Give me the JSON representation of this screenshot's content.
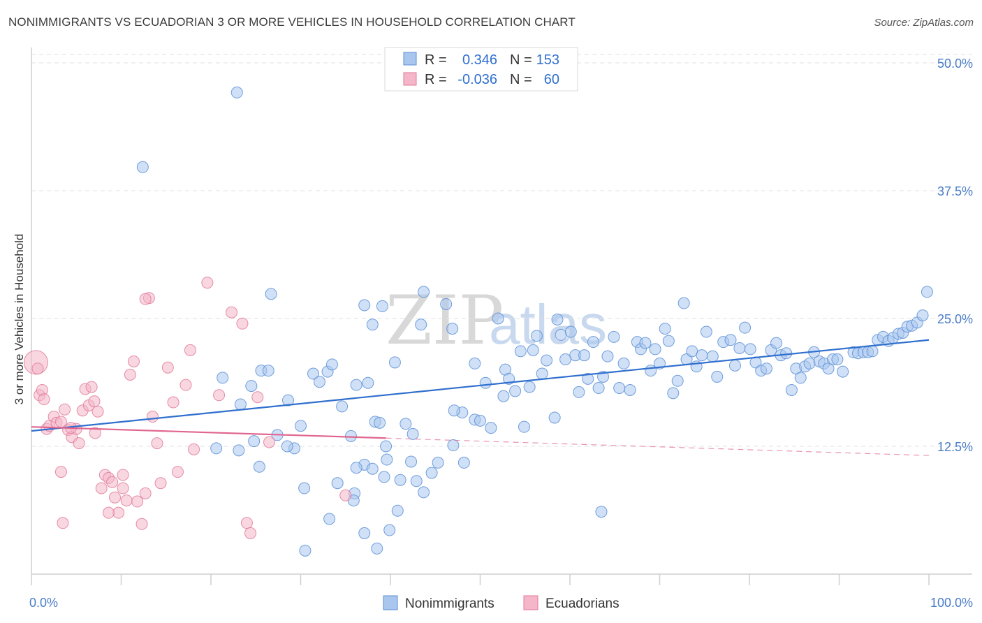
{
  "title": "NONIMMIGRANTS VS ECUADORIAN 3 OR MORE VEHICLES IN HOUSEHOLD CORRELATION CHART",
  "source": "Source: ZipAtlas.com",
  "watermark": {
    "zip": "ZIP",
    "atlas": "atlas"
  },
  "colors": {
    "blue_fill": "#a9c6ee",
    "blue_stroke": "#5b8fd6",
    "blue_line": "#2f6fce",
    "pink_fill": "#f4b6c8",
    "pink_stroke": "#e07a9a",
    "pink_line": "#e0668f",
    "tick_text": "#4a7cc9",
    "grid": "#e2e2e2"
  },
  "legend": {
    "rows": [
      {
        "r_label": "R =",
        "r_value": "0.346",
        "n_label": "N =",
        "n_value": "153"
      },
      {
        "r_label": "R =",
        "r_value": "-0.036",
        "n_label": "N =",
        "n_value": "60"
      }
    ]
  },
  "chart_data": {
    "type": "scatter",
    "title": "NONIMMIGRANTS VS ECUADORIAN 3 OR MORE VEHICLES IN HOUSEHOLD CORRELATION CHART",
    "xlabel": "",
    "ylabel": "3 or more Vehicles in Household",
    "xlim": [
      0,
      100
    ],
    "ylim": [
      0,
      51.5
    ],
    "x_tick_labels": [
      {
        "value": 0,
        "label": "0.0%"
      },
      {
        "value": 100,
        "label": "100.0%"
      }
    ],
    "y_tick_labels": [
      {
        "value": 12.5,
        "label": "12.5%"
      },
      {
        "value": 25.0,
        "label": "25.0%"
      },
      {
        "value": 37.5,
        "label": "37.5%"
      },
      {
        "value": 50.0,
        "label": "50.0%"
      }
    ],
    "grid": true,
    "legend_position": "top-center",
    "series": [
      {
        "name": "Nonimmigrants",
        "color": "#a9c6ee",
        "trend": {
          "x": [
            0,
            100
          ],
          "y": [
            14.0,
            22.9
          ]
        },
        "points": [
          [
            22.9,
            47.1
          ],
          [
            12.4,
            39.8
          ],
          [
            26.7,
            27.4
          ],
          [
            43.7,
            27.6
          ],
          [
            37.1,
            26.3
          ],
          [
            39.1,
            26.2
          ],
          [
            46.2,
            26.4
          ],
          [
            72.7,
            26.5
          ],
          [
            21.3,
            19.2
          ],
          [
            25.6,
            19.9
          ],
          [
            24.5,
            18.4
          ],
          [
            28.6,
            17.0
          ],
          [
            30.0,
            14.5
          ],
          [
            34.6,
            16.4
          ],
          [
            36.2,
            18.5
          ],
          [
            37.5,
            18.7
          ],
          [
            38.0,
            24.4
          ],
          [
            40.5,
            20.7
          ],
          [
            41.7,
            14.7
          ],
          [
            43.4,
            24.4
          ],
          [
            46.9,
            24.0
          ],
          [
            48.0,
            15.8
          ],
          [
            49.4,
            15.1
          ],
          [
            50.0,
            15.0
          ],
          [
            51.2,
            14.3
          ],
          [
            49.4,
            20.6
          ],
          [
            50.6,
            18.7
          ],
          [
            52.0,
            25.0
          ],
          [
            52.6,
            17.4
          ],
          [
            52.8,
            20.0
          ],
          [
            53.2,
            19.1
          ],
          [
            53.9,
            17.9
          ],
          [
            54.5,
            21.8
          ],
          [
            54.9,
            14.4
          ],
          [
            55.5,
            18.3
          ],
          [
            55.9,
            21.9
          ],
          [
            56.3,
            23.3
          ],
          [
            56.9,
            19.6
          ],
          [
            57.4,
            20.9
          ],
          [
            58.3,
            15.3
          ],
          [
            58.6,
            24.9
          ],
          [
            59.0,
            23.4
          ],
          [
            59.5,
            21.0
          ],
          [
            60.1,
            23.7
          ],
          [
            60.6,
            21.4
          ],
          [
            61.0,
            17.8
          ],
          [
            61.6,
            21.4
          ],
          [
            62.0,
            19.1
          ],
          [
            62.6,
            22.7
          ],
          [
            63.2,
            18.2
          ],
          [
            63.7,
            19.3
          ],
          [
            64.2,
            21.3
          ],
          [
            64.9,
            23.2
          ],
          [
            65.5,
            18.2
          ],
          [
            66.0,
            20.6
          ],
          [
            66.7,
            18.0
          ],
          [
            67.5,
            22.7
          ],
          [
            67.9,
            22.0
          ],
          [
            68.4,
            22.6
          ],
          [
            69.0,
            19.9
          ],
          [
            69.5,
            22.0
          ],
          [
            70.0,
            20.6
          ],
          [
            70.6,
            24.0
          ],
          [
            71.0,
            22.8
          ],
          [
            71.5,
            17.7
          ],
          [
            72.0,
            18.9
          ],
          [
            73.0,
            21.0
          ],
          [
            73.6,
            21.8
          ],
          [
            74.1,
            20.3
          ],
          [
            74.7,
            21.4
          ],
          [
            75.2,
            23.7
          ],
          [
            75.9,
            21.3
          ],
          [
            76.4,
            19.3
          ],
          [
            77.1,
            22.7
          ],
          [
            77.9,
            22.9
          ],
          [
            78.4,
            20.4
          ],
          [
            78.9,
            22.1
          ],
          [
            79.5,
            24.1
          ],
          [
            80.1,
            22.0
          ],
          [
            80.7,
            20.7
          ],
          [
            81.3,
            19.9
          ],
          [
            81.9,
            20.1
          ],
          [
            82.4,
            21.9
          ],
          [
            83.0,
            22.6
          ],
          [
            83.5,
            21.4
          ],
          [
            84.1,
            21.6
          ],
          [
            84.7,
            18.0
          ],
          [
            85.2,
            20.1
          ],
          [
            85.7,
            19.2
          ],
          [
            86.2,
            20.3
          ],
          [
            86.7,
            20.6
          ],
          [
            87.2,
            21.7
          ],
          [
            87.8,
            20.8
          ],
          [
            88.3,
            20.6
          ],
          [
            88.8,
            20.1
          ],
          [
            89.3,
            21.0
          ],
          [
            89.8,
            21.0
          ],
          [
            90.4,
            19.8
          ],
          [
            91.6,
            21.7
          ],
          [
            92.1,
            21.6
          ],
          [
            92.7,
            21.7
          ],
          [
            93.2,
            21.7
          ],
          [
            93.7,
            21.8
          ],
          [
            94.3,
            22.9
          ],
          [
            94.9,
            23.2
          ],
          [
            95.5,
            22.8
          ],
          [
            96.0,
            23.1
          ],
          [
            96.6,
            23.5
          ],
          [
            97.1,
            23.6
          ],
          [
            97.6,
            24.2
          ],
          [
            98.1,
            24.3
          ],
          [
            98.7,
            24.6
          ],
          [
            99.3,
            25.3
          ],
          [
            99.8,
            27.6
          ],
          [
            33.0,
            19.8
          ],
          [
            33.5,
            20.5
          ],
          [
            35.6,
            13.5
          ],
          [
            37.1,
            10.7
          ],
          [
            38.3,
            14.9
          ],
          [
            39.6,
            11.2
          ],
          [
            41.1,
            9.2
          ],
          [
            42.3,
            11.0
          ],
          [
            42.9,
            9.1
          ],
          [
            43.7,
            8.0
          ],
          [
            44.6,
            9.9
          ],
          [
            45.3,
            10.9
          ],
          [
            47.1,
            16.0
          ],
          [
            48.2,
            10.9
          ],
          [
            47.0,
            12.6
          ],
          [
            27.4,
            13.6
          ],
          [
            29.3,
            12.3
          ],
          [
            23.1,
            12.1
          ],
          [
            28.5,
            12.5
          ],
          [
            36.0,
            7.9
          ],
          [
            38.0,
            10.3
          ],
          [
            39.3,
            9.5
          ],
          [
            40.8,
            6.2
          ],
          [
            39.9,
            4.3
          ],
          [
            37.1,
            4.0
          ],
          [
            33.2,
            5.4
          ],
          [
            35.9,
            7.2
          ],
          [
            38.5,
            2.5
          ],
          [
            30.5,
            2.3
          ],
          [
            31.4,
            19.6
          ],
          [
            25.4,
            10.5
          ],
          [
            30.4,
            8.4
          ],
          [
            34.1,
            8.9
          ],
          [
            36.2,
            10.4
          ],
          [
            20.6,
            12.3
          ],
          [
            23.3,
            16.6
          ],
          [
            26.4,
            19.9
          ],
          [
            24.8,
            13.0
          ],
          [
            39.5,
            12.5
          ],
          [
            38.8,
            14.8
          ],
          [
            63.5,
            6.1
          ],
          [
            42.5,
            13.7
          ],
          [
            32.1,
            18.8
          ]
        ]
      },
      {
        "name": "Ecuadorians",
        "color": "#f4b6c8",
        "trend": {
          "x": [
            0,
            39.5
          ],
          "y": [
            14.4,
            13.3
          ]
        },
        "trend_dashed": {
          "x": [
            39.5,
            100
          ],
          "y": [
            13.3,
            11.6
          ]
        },
        "points": [
          [
            0.5,
            20.7
          ],
          [
            0.7,
            20.1
          ],
          [
            0.9,
            17.5
          ],
          [
            1.2,
            18.0
          ],
          [
            1.4,
            17.1
          ],
          [
            1.7,
            14.2
          ],
          [
            2.0,
            14.5
          ],
          [
            2.5,
            15.4
          ],
          [
            2.8,
            14.8
          ],
          [
            3.3,
            14.9
          ],
          [
            3.7,
            16.1
          ],
          [
            4.1,
            14.1
          ],
          [
            4.5,
            13.4
          ],
          [
            5.0,
            14.2
          ],
          [
            5.3,
            12.8
          ],
          [
            5.7,
            16.0
          ],
          [
            6.0,
            18.1
          ],
          [
            6.4,
            16.5
          ],
          [
            6.7,
            18.3
          ],
          [
            7.1,
            13.8
          ],
          [
            7.4,
            15.9
          ],
          [
            7.8,
            8.4
          ],
          [
            8.2,
            9.7
          ],
          [
            8.6,
            9.4
          ],
          [
            9.0,
            9.0
          ],
          [
            9.3,
            7.5
          ],
          [
            9.7,
            6.0
          ],
          [
            10.2,
            8.4
          ],
          [
            10.6,
            7.2
          ],
          [
            11.0,
            19.5
          ],
          [
            11.4,
            20.8
          ],
          [
            11.8,
            7.1
          ],
          [
            12.3,
            4.9
          ],
          [
            12.7,
            7.9
          ],
          [
            13.1,
            27.0
          ],
          [
            13.5,
            15.4
          ],
          [
            14.0,
            12.8
          ],
          [
            14.4,
            8.9
          ],
          [
            15.2,
            20.2
          ],
          [
            15.8,
            16.8
          ],
          [
            16.3,
            10.0
          ],
          [
            17.2,
            18.5
          ],
          [
            17.7,
            21.9
          ],
          [
            18.1,
            12.2
          ],
          [
            19.6,
            28.5
          ],
          [
            20.9,
            17.5
          ],
          [
            22.3,
            25.6
          ],
          [
            23.5,
            24.5
          ],
          [
            24.0,
            5.0
          ],
          [
            24.4,
            4.0
          ],
          [
            25.2,
            17.3
          ],
          [
            26.5,
            12.9
          ],
          [
            35.0,
            7.7
          ],
          [
            10.2,
            9.7
          ],
          [
            3.3,
            10.0
          ],
          [
            3.5,
            5.0
          ],
          [
            8.6,
            6.0
          ],
          [
            12.7,
            26.9
          ],
          [
            7.0,
            16.9
          ],
          [
            4.4,
            14.3
          ]
        ]
      }
    ]
  },
  "bottom_legend": {
    "items": [
      "Nonimmigrants",
      "Ecuadorians"
    ]
  }
}
